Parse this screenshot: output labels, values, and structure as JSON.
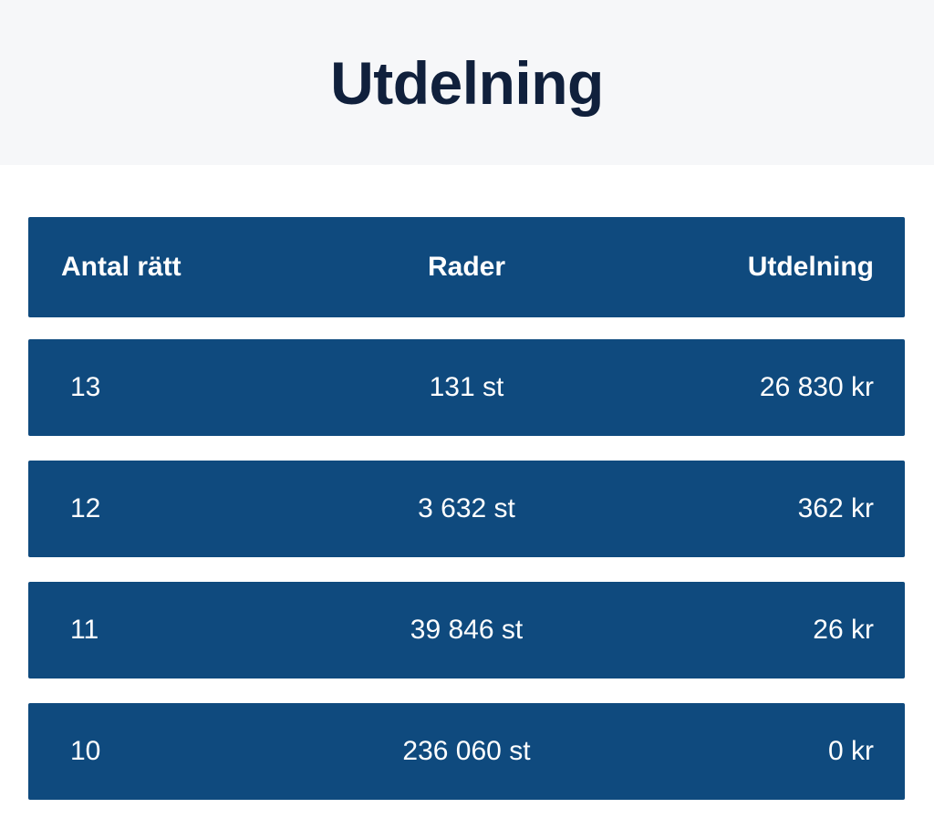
{
  "page": {
    "title": "Utdelning"
  },
  "table": {
    "columns": [
      {
        "key": "antal_ratt",
        "label": "Antal rätt",
        "align": "left"
      },
      {
        "key": "rader",
        "label": "Rader",
        "align": "center"
      },
      {
        "key": "utdelning",
        "label": "Utdelning",
        "align": "right"
      }
    ],
    "rows": [
      {
        "antal_ratt": "13",
        "rader": "131 st",
        "utdelning": "26 830 kr"
      },
      {
        "antal_ratt": "12",
        "rader": "3 632 st",
        "utdelning": "362 kr"
      },
      {
        "antal_ratt": "11",
        "rader": "39 846 st",
        "utdelning": "26 kr"
      },
      {
        "antal_ratt": "10",
        "rader": "236 060 st",
        "utdelning": "0 kr"
      }
    ]
  },
  "colors": {
    "row_blue": "#0f4a7e",
    "title_navy": "#10203c",
    "banner_gray": "#f6f7f9",
    "row_text": "#ffffff",
    "page_background": "#ffffff"
  }
}
